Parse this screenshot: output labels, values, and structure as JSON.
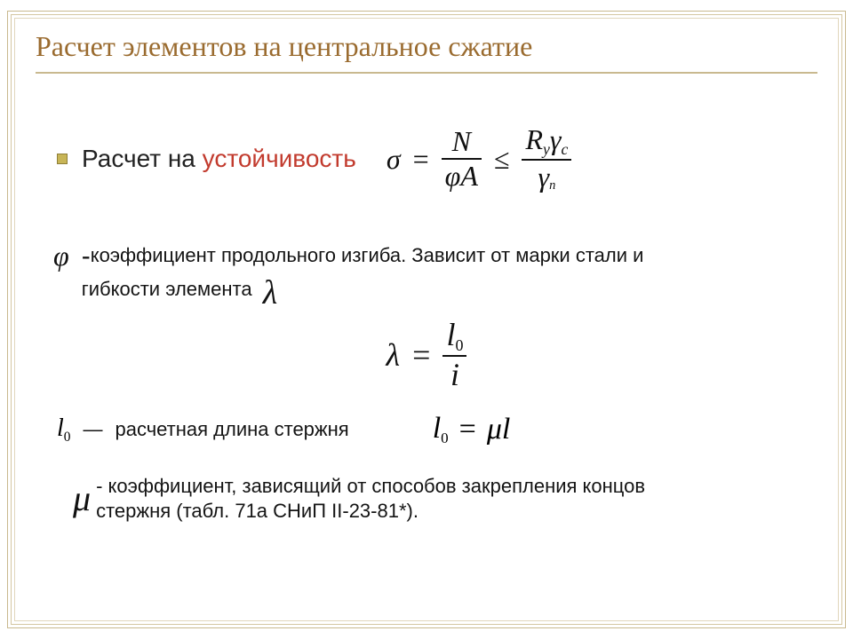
{
  "colors": {
    "titleColor": "#9a6b2f",
    "bulletFill": "#c8b557",
    "bulletBorder": "#8f7f38",
    "frameColor": "#c9b98f",
    "highlight": "#c23b2e",
    "text": "#141414",
    "background": "#ffffff"
  },
  "typography": {
    "titleFont": "Georgia",
    "bodyFont": "Arial",
    "mathFont": "Times New Roman",
    "titleSize": 32,
    "bodySize": 22,
    "formulaSize": 34
  },
  "title": "Расчет элементов на центральное сжатие",
  "subhead": {
    "prefix": "Расчет на ",
    "highlight": "устойчивость"
  },
  "formula_sigma": {
    "lhs": "σ",
    "eq": "=",
    "frac1": {
      "num": "N",
      "den_left": "φ",
      "den_right": "A"
    },
    "rel": "≤",
    "frac2": {
      "num_R": "R",
      "num_Rsub": "y",
      "num_g": "γ",
      "num_gsub": "c",
      "den_g": "γ",
      "den_gsub": "n"
    }
  },
  "phi_desc": {
    "symbol": "φ",
    "dash": "-",
    "line1": "коэффициент продольного изгиба. Зависит от марки стали и",
    "line2_prefix": "гибкости элемента",
    "inline_symbol": "λ"
  },
  "formula_lambda": {
    "lhs": "λ",
    "eq": "=",
    "num_l": "l",
    "num_sub": "0",
    "den": "i"
  },
  "l0_desc": {
    "sym_l": "l",
    "sym_sub": "0",
    "mdash": "—",
    "text": "расчетная длина стержня",
    "eq_lhs_l": "l",
    "eq_lhs_sub": "0",
    "eq": "=",
    "eq_mu": "μ",
    "eq_l": "l"
  },
  "mu_desc": {
    "symbol": "μ",
    "line1": "- коэффициент, зависящий от способов закрепления концов",
    "line2": "стержня (табл. 71а СНиП II-23-81*)."
  }
}
